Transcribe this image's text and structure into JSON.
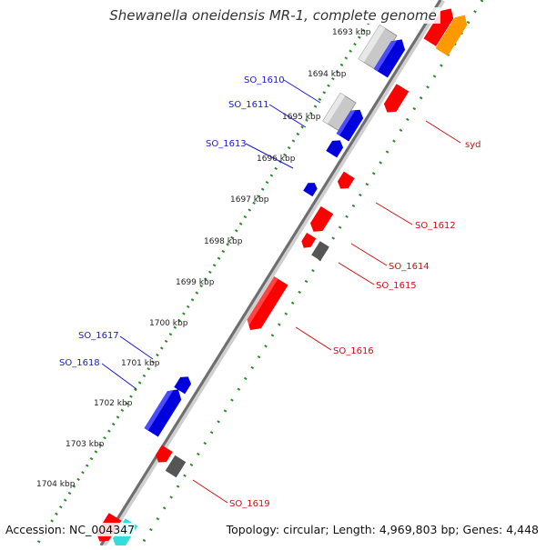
{
  "title": "Shewanella oneidensis MR-1, complete genome",
  "footer": {
    "accession": "Accession: NC_004347",
    "topology": "Topology: circular; Length: 4,969,803 bp; Genes: 4,448"
  },
  "colors": {
    "minus_gene": "#ff0000",
    "plus_gene": "#0000dd",
    "other_gene": "#555555",
    "rna_gene": "#c8c8c8",
    "tick": "#2a8a2a",
    "blue_label": "#1a1acc",
    "red_label": "#cc1111"
  },
  "ticks": [
    "1693 kbp",
    "1694 kbp",
    "1695 kbp",
    "1696 kbp",
    "1697 kbp",
    "1698 kbp",
    "1699 kbp",
    "1700 kbp",
    "1701 kbp",
    "1702 kbp",
    "1703 kbp",
    "1704 kbp"
  ],
  "left_gene_labels": [
    "SO_1610",
    "SO_1611",
    "SO_1613",
    "SO_1617",
    "SO_1618"
  ],
  "right_gene_labels": [
    "syd",
    "SO_1612",
    "SO_1614",
    "SO_1615",
    "SO_1616",
    "SO_1619"
  ]
}
